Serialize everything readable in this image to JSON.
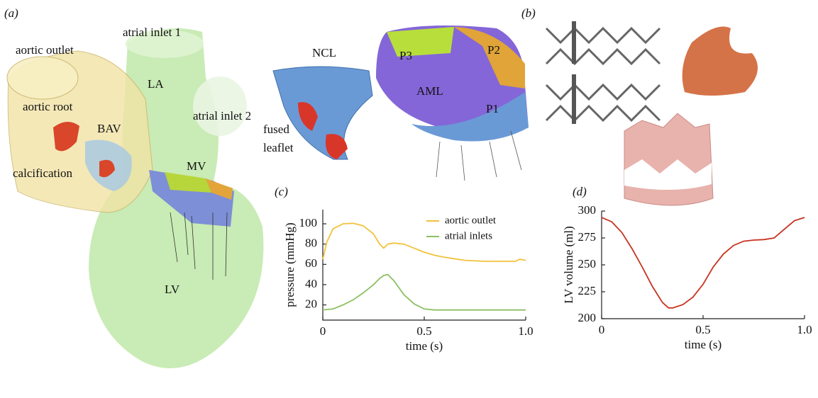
{
  "panel_labels": [
    "(a)",
    "(b)"
  ],
  "anatomy_labels": [
    "aortic outlet",
    "atrial inlet 1",
    "LA",
    "atrial inlet 2",
    "aortic root",
    "BAV",
    "calcification",
    "MV",
    "LV"
  ],
  "valve_labels": [
    "NCL",
    "fused",
    "leaflet",
    "P3",
    "P2",
    "AML",
    "P1"
  ],
  "chart_data": [
    {
      "type": "line",
      "title": "(c)",
      "x_label": "time (s)",
      "y_label": "pressure (mmHg)",
      "x": [
        0,
        0.02,
        0.05,
        0.1,
        0.15,
        0.2,
        0.25,
        0.28,
        0.3,
        0.32,
        0.35,
        0.4,
        0.45,
        0.5,
        0.55,
        0.6,
        0.7,
        0.8,
        0.9,
        0.95,
        0.97,
        1.0
      ],
      "series": [
        {
          "name": "aortic outlet",
          "color": "#f2c23a",
          "values": [
            65,
            82,
            95,
            100,
            100.5,
            98,
            90,
            80,
            76,
            80,
            81,
            80,
            76,
            72,
            69,
            67,
            64,
            63,
            63,
            63,
            65,
            64
          ]
        },
        {
          "name": "atrial inlets",
          "color": "#8cc063",
          "values": [
            15,
            15.5,
            16,
            20,
            25,
            32,
            40,
            46,
            49,
            50,
            44,
            30,
            21,
            16,
            15,
            15,
            15,
            15,
            15,
            15,
            15,
            15
          ]
        }
      ],
      "xlim": [
        0,
        1
      ],
      "xticks": [
        0,
        0.5,
        {
          "value": 1,
          "label": "1.0"
        }
      ],
      "ylim": [
        5,
        114
      ],
      "yticks": [
        20,
        40,
        60,
        80,
        100
      ],
      "legend": "top-right"
    },
    {
      "type": "line",
      "title": "(d)",
      "x_label": "time (s)",
      "y_label": "LV volume (ml)",
      "x": [
        0,
        0.05,
        0.1,
        0.15,
        0.2,
        0.25,
        0.3,
        0.33,
        0.35,
        0.4,
        0.45,
        0.5,
        0.55,
        0.6,
        0.65,
        0.7,
        0.75,
        0.8,
        0.85,
        0.9,
        0.95,
        1.0
      ],
      "values": [
        294,
        290,
        280,
        265,
        248,
        230,
        215,
        210,
        210,
        213,
        220,
        232,
        248,
        260,
        268,
        272,
        273,
        273.5,
        275,
        283,
        291,
        294
      ],
      "color": "#c8321f",
      "xlim": [
        0,
        1
      ],
      "xticks": [
        0,
        0.5,
        {
          "value": 1,
          "label": "1.0"
        }
      ],
      "ylim": [
        200,
        300
      ],
      "yticks": [
        200,
        225,
        250,
        275,
        300
      ]
    }
  ]
}
